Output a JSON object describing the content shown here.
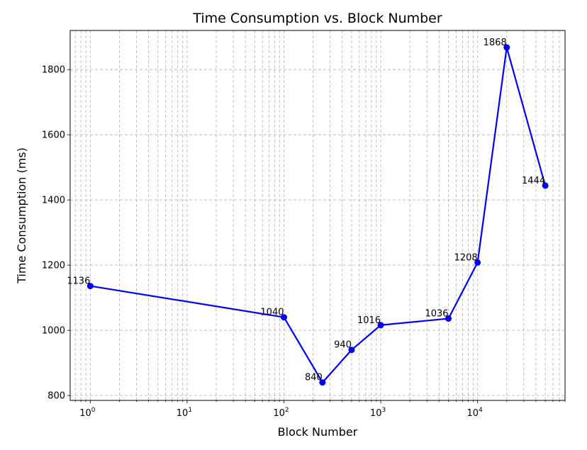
{
  "chart_data": {
    "type": "line",
    "title": "Time Consumption vs. Block Number",
    "xlabel": "Block Number",
    "ylabel": "Time Consumption (ms)",
    "xscale": "log",
    "grid": true,
    "grid_style": "dashed",
    "x_ticks": [
      {
        "value": 1,
        "base": "10",
        "exp": "0"
      },
      {
        "value": 10,
        "base": "10",
        "exp": "1"
      },
      {
        "value": 100,
        "base": "10",
        "exp": "2"
      },
      {
        "value": 1000,
        "base": "10",
        "exp": "3"
      },
      {
        "value": 10000,
        "base": "10",
        "exp": "4"
      }
    ],
    "y_ticks": [
      "800",
      "1000",
      "1200",
      "1400",
      "1600",
      "1800"
    ],
    "xlim": [
      0.62,
      80000
    ],
    "ylim": [
      785,
      1920
    ],
    "series": [
      {
        "color": "#0000ff",
        "marker": "circle",
        "points": [
          {
            "x": 1,
            "y": 1136,
            "label": "1136"
          },
          {
            "x": 100,
            "y": 1040,
            "label": "1040"
          },
          {
            "x": 250,
            "y": 840,
            "label": "840"
          },
          {
            "x": 500,
            "y": 940,
            "label": "940"
          },
          {
            "x": 1000,
            "y": 1016,
            "label": "1016"
          },
          {
            "x": 5000,
            "y": 1036,
            "label": "1036"
          },
          {
            "x": 10000,
            "y": 1208,
            "label": "1208"
          },
          {
            "x": 20000,
            "y": 1868,
            "label": "1868"
          },
          {
            "x": 50000,
            "y": 1444,
            "label": "1444"
          }
        ]
      }
    ]
  }
}
